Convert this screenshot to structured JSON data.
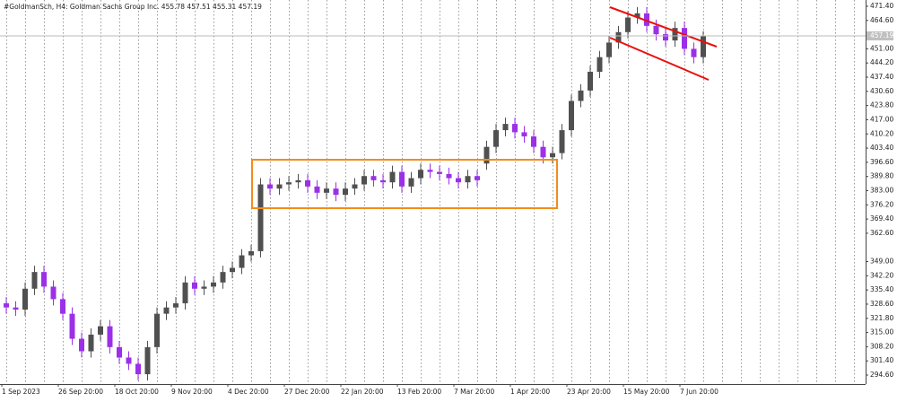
{
  "chart_data": {
    "type": "candlestick",
    "title": "#GoldmanSch, H4:  Goldman Sachs Group Inc.  455.78 457.51 455.31 457.19",
    "x": [
      "1 Sep 2023",
      null,
      null,
      null,
      null,
      null,
      "26 Sep 20:00",
      null,
      null,
      null,
      null,
      null,
      "18 Oct 20:00",
      null,
      null,
      null,
      null,
      null,
      "9 Nov 20:00",
      null,
      null,
      null,
      null,
      null,
      "4 Dec 20:00",
      null,
      null,
      null,
      null,
      null,
      "27 Dec 20:00",
      null,
      null,
      null,
      null,
      null,
      "22 Jan 20:00",
      null,
      null,
      null,
      null,
      null,
      "13 Feb 20:00",
      null,
      null,
      null,
      null,
      null,
      "7 Mar 20:00",
      null,
      null,
      null,
      null,
      null,
      "1 Apr 20:00",
      null,
      null,
      null,
      null,
      null,
      "23 Apr 20:00",
      null,
      null,
      null,
      null,
      null,
      "15 May 20:00",
      null,
      null,
      null,
      null,
      null,
      "7 Jun 20:00",
      null,
      null
    ],
    "open": [
      329,
      327,
      326,
      336,
      344,
      337,
      331,
      324,
      312,
      306,
      314,
      318,
      308,
      303,
      300,
      295,
      308,
      324,
      327,
      329,
      339,
      336,
      337,
      339,
      344,
      346,
      352,
      354,
      386,
      384,
      386,
      387,
      388,
      385,
      382,
      384,
      381,
      384,
      386,
      390,
      388,
      387,
      392,
      385,
      389,
      393,
      392,
      391,
      389,
      387,
      390,
      396,
      404,
      412,
      415,
      411,
      409,
      404,
      399,
      401,
      412,
      426,
      431,
      440,
      447,
      454,
      459,
      466,
      468,
      462,
      458,
      455,
      461,
      451,
      447
    ],
    "high": [
      332,
      330,
      339,
      347,
      347,
      340,
      334,
      327,
      315,
      317,
      321,
      321,
      311,
      306,
      303,
      311,
      327,
      330,
      332,
      342,
      342,
      340,
      342,
      347,
      349,
      355,
      357,
      389,
      389,
      389,
      390,
      391,
      391,
      388,
      387,
      387,
      387,
      389,
      393,
      393,
      391,
      395,
      395,
      392,
      396,
      396,
      395,
      394,
      392,
      393,
      393,
      407,
      415,
      418,
      418,
      414,
      412,
      407,
      404,
      415,
      429,
      434,
      443,
      450,
      457,
      462,
      469,
      471,
      471,
      465,
      461,
      464,
      464,
      454,
      459.5
    ],
    "low": [
      324,
      323,
      323,
      333,
      334,
      328,
      321,
      309,
      303,
      303,
      311,
      305,
      300,
      297,
      292,
      292,
      305,
      321,
      324,
      326,
      333,
      333,
      334,
      336,
      341,
      343,
      349,
      351,
      381,
      381,
      383,
      384,
      382,
      379,
      379,
      378,
      378,
      381,
      383,
      385,
      384,
      384,
      382,
      382,
      386,
      389,
      388,
      386,
      384,
      384,
      385,
      393,
      401,
      409,
      408,
      406,
      401,
      396,
      396,
      398,
      409,
      423,
      428,
      437,
      444,
      451,
      456,
      463,
      459,
      455,
      452,
      452,
      448,
      444,
      444
    ],
    "close": [
      327,
      326,
      336,
      344,
      337,
      331,
      324,
      312,
      306,
      314,
      318,
      308,
      303,
      300,
      295,
      308,
      324,
      327,
      329,
      339,
      336,
      337,
      339,
      344,
      346,
      352,
      354,
      386,
      384,
      386,
      387,
      388,
      385,
      382,
      384,
      381,
      384,
      386,
      390,
      388,
      387,
      392,
      385,
      389,
      393,
      392,
      391,
      389,
      387,
      390,
      388,
      404,
      412,
      415,
      411,
      409,
      404,
      399,
      401,
      412,
      426,
      431,
      440,
      447,
      454,
      459,
      466,
      468,
      462,
      458,
      455,
      461,
      451,
      447,
      457.19
    ],
    "up_color": "#505050",
    "down_color": "#9b30e8",
    "ylim": [
      290.3,
      474.4
    ],
    "yticks": [
      {
        "value": 471.4,
        "label": "471.40"
      },
      {
        "value": 464.6,
        "label": "464.60"
      },
      {
        "value": 451,
        "label": "451.00"
      },
      {
        "value": 444.2,
        "label": "444.20"
      },
      {
        "value": 437.4,
        "label": "437.40"
      },
      {
        "value": 430.6,
        "label": "430.60"
      },
      {
        "value": 423.8,
        "label": "423.80"
      },
      {
        "value": 417,
        "label": "417.00"
      },
      {
        "value": 410.2,
        "label": "410.20"
      },
      {
        "value": 403.4,
        "label": "403.40"
      },
      {
        "value": 396.6,
        "label": "396.60"
      },
      {
        "value": 389.8,
        "label": "389.80"
      },
      {
        "value": 383,
        "label": "383.00"
      },
      {
        "value": 376.2,
        "label": "376.20"
      },
      {
        "value": 369.4,
        "label": "369.40"
      },
      {
        "value": 362.6,
        "label": "362.60"
      },
      {
        "value": 349,
        "label": "349.00"
      },
      {
        "value": 342.2,
        "label": "342.20"
      },
      {
        "value": 335.4,
        "label": "335.40"
      },
      {
        "value": 328.6,
        "label": "328.60"
      },
      {
        "value": 321.8,
        "label": "321.80"
      },
      {
        "value": 315,
        "label": "315.00"
      },
      {
        "value": 308.2,
        "label": "308.20"
      },
      {
        "value": 301.4,
        "label": "301.40"
      },
      {
        "value": 294.6,
        "label": "294.60"
      }
    ],
    "last_price": {
      "value": 457.19,
      "label": "457.19"
    }
  }
}
